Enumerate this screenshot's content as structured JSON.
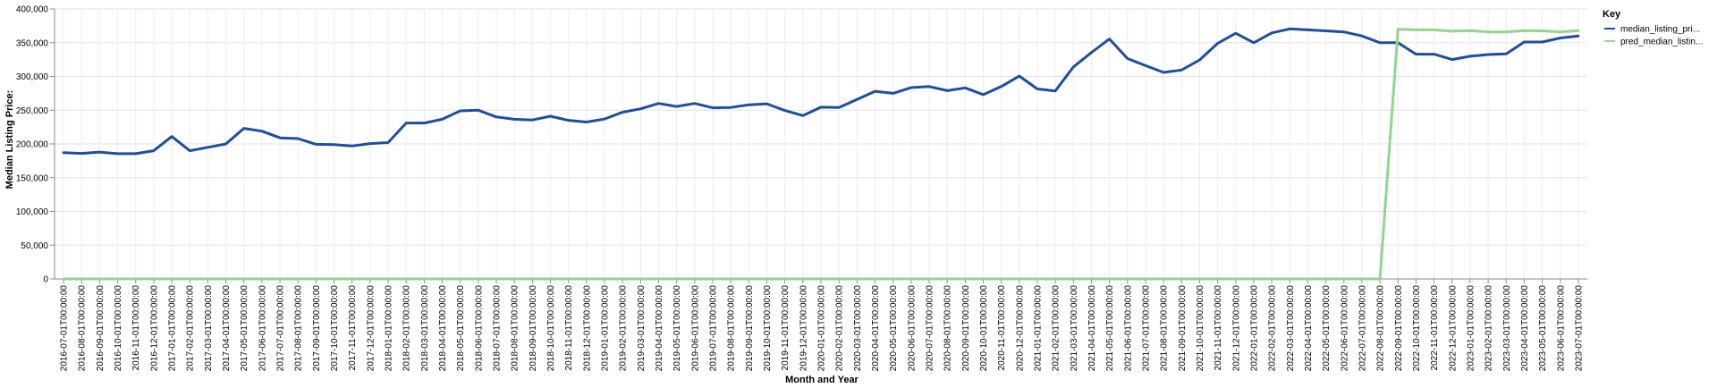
{
  "chart_data": {
    "type": "line",
    "xlabel": "Month and Year",
    "ylabel": "Median Listing Price:",
    "ylim": [
      0,
      400000
    ],
    "y_ticks": [
      "0",
      "50,000",
      "100,000",
      "150,000",
      "200,000",
      "250,000",
      "300,000",
      "350,000",
      "400,000"
    ],
    "grid": true,
    "legend": {
      "title": "Key",
      "position": "right"
    },
    "categories": [
      "2016-07-01T00:00:00",
      "2016-08-01T00:00:00",
      "2016-09-01T00:00:00",
      "2016-10-01T00:00:00",
      "2016-11-01T00:00:00",
      "2016-12-01T00:00:00",
      "2017-01-01T00:00:00",
      "2017-02-01T00:00:00",
      "2017-03-01T00:00:00",
      "2017-04-01T00:00:00",
      "2017-05-01T00:00:00",
      "2017-06-01T00:00:00",
      "2017-07-01T00:00:00",
      "2017-08-01T00:00:00",
      "2017-09-01T00:00:00",
      "2017-10-01T00:00:00",
      "2017-11-01T00:00:00",
      "2017-12-01T00:00:00",
      "2018-01-01T00:00:00",
      "2018-02-01T00:00:00",
      "2018-03-01T00:00:00",
      "2018-04-01T00:00:00",
      "2018-05-01T00:00:00",
      "2018-06-01T00:00:00",
      "2018-07-01T00:00:00",
      "2018-08-01T00:00:00",
      "2018-09-01T00:00:00",
      "2018-10-01T00:00:00",
      "2018-11-01T00:00:00",
      "2018-12-01T00:00:00",
      "2019-01-01T00:00:00",
      "2019-02-01T00:00:00",
      "2019-03-01T00:00:00",
      "2019-04-01T00:00:00",
      "2019-05-01T00:00:00",
      "2019-06-01T00:00:00",
      "2019-07-01T00:00:00",
      "2019-08-01T00:00:00",
      "2019-09-01T00:00:00",
      "2019-10-01T00:00:00",
      "2019-11-01T00:00:00",
      "2019-12-01T00:00:00",
      "2020-01-01T00:00:00",
      "2020-02-01T00:00:00",
      "2020-03-01T00:00:00",
      "2020-04-01T00:00:00",
      "2020-05-01T00:00:00",
      "2020-06-01T00:00:00",
      "2020-07-01T00:00:00",
      "2020-08-01T00:00:00",
      "2020-09-01T00:00:00",
      "2020-10-01T00:00:00",
      "2020-11-01T00:00:00",
      "2020-12-01T00:00:00",
      "2021-01-01T00:00:00",
      "2021-02-01T00:00:00",
      "2021-03-01T00:00:00",
      "2021-04-01T00:00:00",
      "2021-05-01T00:00:00",
      "2021-06-01T00:00:00",
      "2021-07-01T00:00:00",
      "2021-08-01T00:00:00",
      "2021-09-01T00:00:00",
      "2021-10-01T00:00:00",
      "2021-11-01T00:00:00",
      "2021-12-01T00:00:00",
      "2022-01-01T00:00:00",
      "2022-02-01T00:00:00",
      "2022-03-01T00:00:00",
      "2022-04-01T00:00:00",
      "2022-05-01T00:00:00",
      "2022-06-01T00:00:00",
      "2022-07-01T00:00:00",
      "2022-08-01T00:00:00",
      "2022-09-01T00:00:00",
      "2022-10-01T00:00:00",
      "2022-11-01T00:00:00",
      "2022-12-01T00:00:00",
      "2023-01-01T00:00:00",
      "2023-02-01T00:00:00",
      "2023-03-01T00:00:00",
      "2023-04-01T00:00:00",
      "2023-05-01T00:00:00",
      "2023-06-01T00:00:00",
      "2023-07-01T00:00:00"
    ],
    "series": [
      {
        "name": "median_listing_pri...",
        "color": "#1f4e9c",
        "values": [
          187000,
          186000,
          188000,
          185500,
          185500,
          190000,
          211000,
          190000,
          195000,
          200000,
          223000,
          219000,
          209000,
          208000,
          199500,
          199000,
          197000,
          200500,
          202000,
          231000,
          231000,
          236500,
          249000,
          250000,
          240000,
          236500,
          235500,
          241000,
          235000,
          232500,
          237000,
          247000,
          252000,
          260000,
          255500,
          260000,
          253500,
          254000,
          258000,
          259500,
          249500,
          242000,
          254500,
          254000,
          266000,
          278000,
          275000,
          283500,
          285000,
          279000,
          283000,
          273000,
          285000,
          300500,
          281500,
          278500,
          314000,
          335500,
          355500,
          326500,
          316000,
          306000,
          309500,
          324500,
          349000,
          364000,
          350000,
          364500,
          370500,
          369000,
          367500,
          366000,
          360000,
          350000,
          350000,
          333000,
          333000,
          325000,
          330000,
          332500,
          333500,
          351000,
          351000,
          357000,
          360000
        ]
      },
      {
        "name": "pred_median_listin...",
        "color": "#93d48f",
        "values": [
          0,
          0,
          0,
          0,
          0,
          0,
          0,
          0,
          0,
          0,
          0,
          0,
          0,
          0,
          0,
          0,
          0,
          0,
          0,
          0,
          0,
          0,
          0,
          0,
          0,
          0,
          0,
          0,
          0,
          0,
          0,
          0,
          0,
          0,
          0,
          0,
          0,
          0,
          0,
          0,
          0,
          0,
          0,
          0,
          0,
          0,
          0,
          0,
          0,
          0,
          0,
          0,
          0,
          0,
          0,
          0,
          0,
          0,
          0,
          0,
          0,
          0,
          0,
          0,
          0,
          0,
          0,
          0,
          0,
          0,
          0,
          0,
          0,
          0,
          370000,
          369000,
          369000,
          367000,
          368000,
          366000,
          366000,
          368000,
          367500,
          366000,
          368000
        ]
      }
    ]
  }
}
